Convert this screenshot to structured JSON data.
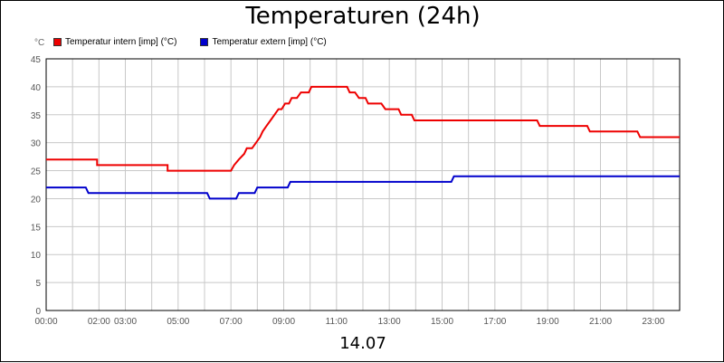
{
  "page": {
    "title": "Temperaturen (24h)",
    "footer": "14.07",
    "unit": "°C"
  },
  "chart_data": {
    "type": "line",
    "title": "Temperaturen (24h)",
    "xlabel": "14.07",
    "ylabel": "°C",
    "ylim": [
      0,
      45
    ],
    "xlim_hours": [
      0,
      24
    ],
    "grid": true,
    "legend_position": "top-left",
    "y_ticks": [
      0,
      5,
      10,
      15,
      20,
      25,
      30,
      35,
      40,
      45
    ],
    "x_ticks": [
      {
        "label": "00:00",
        "hour": 0
      },
      {
        "label": "02:00",
        "hour": 2
      },
      {
        "label": "03:00",
        "hour": 3
      },
      {
        "label": "05:00",
        "hour": 5
      },
      {
        "label": "07:00",
        "hour": 7
      },
      {
        "label": "09:00",
        "hour": 9
      },
      {
        "label": "11:00",
        "hour": 11
      },
      {
        "label": "13:00",
        "hour": 13
      },
      {
        "label": "15:00",
        "hour": 15
      },
      {
        "label": "17:00",
        "hour": 17
      },
      {
        "label": "19:00",
        "hour": 19
      },
      {
        "label": "21:00",
        "hour": 21
      },
      {
        "label": "23:00",
        "hour": 23
      }
    ],
    "series": [
      {
        "name": "Temperatur intern [imp] (°C)",
        "color": "#ee0000",
        "points": [
          [
            0,
            27
          ],
          [
            1.93,
            27
          ],
          [
            1.93,
            26
          ],
          [
            4.6,
            26
          ],
          [
            4.6,
            25
          ],
          [
            7.0,
            25
          ],
          [
            7.12,
            26
          ],
          [
            7.3,
            27
          ],
          [
            7.5,
            28
          ],
          [
            7.6,
            29
          ],
          [
            7.8,
            29
          ],
          [
            7.95,
            30
          ],
          [
            8.1,
            31
          ],
          [
            8.2,
            32
          ],
          [
            8.35,
            33
          ],
          [
            8.5,
            34
          ],
          [
            8.65,
            35
          ],
          [
            8.8,
            36
          ],
          [
            8.92,
            36
          ],
          [
            9.05,
            37
          ],
          [
            9.2,
            37
          ],
          [
            9.3,
            38
          ],
          [
            9.5,
            38
          ],
          [
            9.65,
            39
          ],
          [
            9.95,
            39
          ],
          [
            10.05,
            40
          ],
          [
            11.4,
            40
          ],
          [
            11.5,
            39
          ],
          [
            11.7,
            39
          ],
          [
            11.85,
            38
          ],
          [
            12.1,
            38
          ],
          [
            12.2,
            37
          ],
          [
            12.7,
            37
          ],
          [
            12.85,
            36
          ],
          [
            13.35,
            36
          ],
          [
            13.45,
            35
          ],
          [
            13.85,
            35
          ],
          [
            13.95,
            34
          ],
          [
            18.6,
            34
          ],
          [
            18.7,
            33
          ],
          [
            20.5,
            33
          ],
          [
            20.6,
            32
          ],
          [
            22.4,
            32
          ],
          [
            22.5,
            31
          ],
          [
            24,
            31
          ]
        ]
      },
      {
        "name": "Temperatur extern [imp] (°C)",
        "color": "#0000cc",
        "points": [
          [
            0,
            22
          ],
          [
            1.5,
            22
          ],
          [
            1.6,
            21
          ],
          [
            6.1,
            21
          ],
          [
            6.2,
            20
          ],
          [
            7.2,
            20
          ],
          [
            7.3,
            21
          ],
          [
            7.9,
            21
          ],
          [
            8.0,
            22
          ],
          [
            9.15,
            22
          ],
          [
            9.25,
            23
          ],
          [
            15.35,
            23
          ],
          [
            15.45,
            24
          ],
          [
            24,
            24
          ]
        ]
      }
    ]
  }
}
